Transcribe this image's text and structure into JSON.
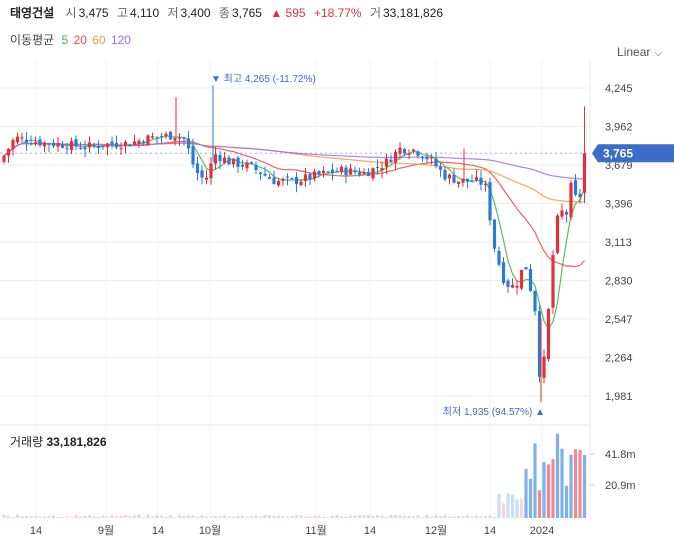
{
  "header": {
    "name": "태영건설",
    "open_label": "시",
    "open": "3,475",
    "high_label": "고",
    "high": "4,110",
    "low_label": "저",
    "low": "3,400",
    "close_label": "종",
    "close": "3,765",
    "change": "▲ 595",
    "change_pct": "+18.77%",
    "volume_label": "거",
    "volume": "33,181,826"
  },
  "ma_legend": {
    "label": "이동평균",
    "periods": [
      "5",
      "20",
      "60",
      "120"
    ],
    "colors": [
      "#3cb44b",
      "#e84a4a",
      "#f39a3c",
      "#a070e0"
    ]
  },
  "scale": {
    "label": "Linear"
  },
  "colors": {
    "up": "#e0323a",
    "down": "#2b7bd6",
    "current_price_bg": "#3a6cc8"
  },
  "chart_data": {
    "type": "candlestick",
    "y_ticks": [
      "4,245",
      "3,962",
      "3,679",
      "3,396",
      "3,113",
      "2,830",
      "2,547",
      "2,264",
      "1,981"
    ],
    "ylim": [
      1900,
      4300
    ],
    "x_labels": [
      "14",
      "9월",
      "14",
      "10월",
      "11월",
      "14",
      "12월",
      "14",
      "2024"
    ],
    "current_price": "3,765",
    "max_annotation": "최고 4,265 (-11.72%)",
    "min_annotation": "최저 1,935 (94.57%)",
    "volume_title": "거래량",
    "volume_value": "33,181,826",
    "volume_ticks": [
      "41.8m",
      "20.9m"
    ]
  }
}
